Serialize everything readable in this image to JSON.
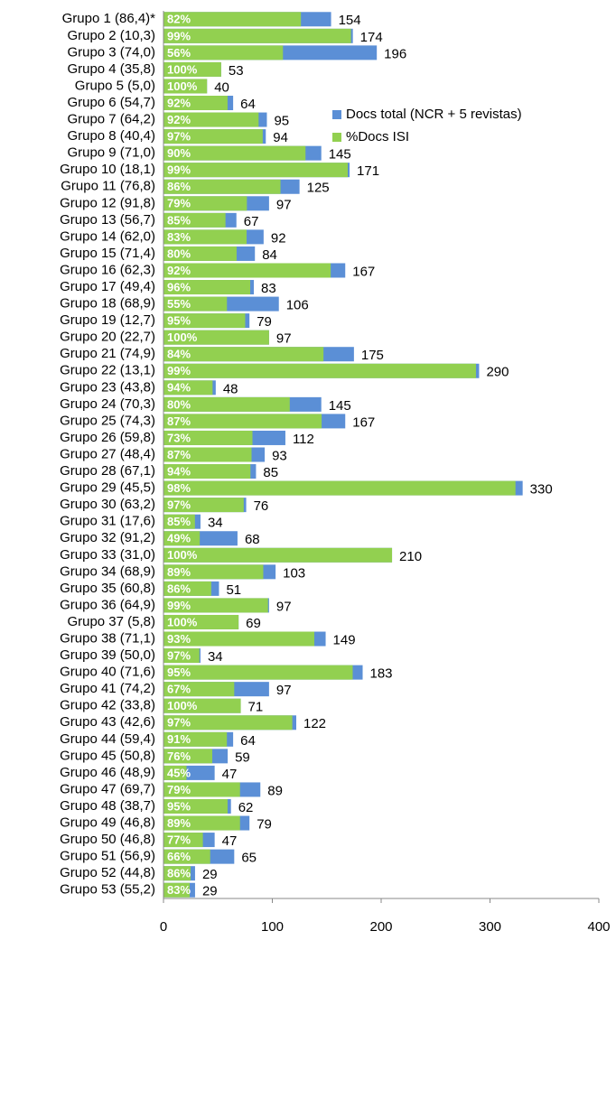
{
  "chart_data": {
    "type": "bar",
    "orientation": "horizontal",
    "categories": [
      "Grupo 1 (86,4)*",
      "Grupo 2 (10,3)",
      "Grupo 3 (74,0)",
      "Grupo 4 (35,8)",
      "Grupo 5 (5,0)",
      "Grupo 6 (54,7)",
      "Grupo 7 (64,2)",
      "Grupo 8 (40,4)",
      "Grupo 9 (71,0)",
      "Grupo 10 (18,1)",
      "Grupo 11 (76,8)",
      "Grupo 12 (91,8)",
      "Grupo 13 (56,7)",
      "Grupo 14 (62,0)",
      "Grupo 15 (71,4)",
      "Grupo 16 (62,3)",
      "Grupo 17 (49,4)",
      "Grupo 18 (68,9)",
      "Grupo 19 (12,7)",
      "Grupo 20 (22,7)",
      "Grupo 21 (74,9)",
      "Grupo 22 (13,1)",
      "Grupo 23 (43,8)",
      "Grupo 24 (70,3)",
      "Grupo 25 (74,3)",
      "Grupo 26 (59,8)",
      "Grupo 27 (48,4)",
      "Grupo 28 (67,1)",
      "Grupo 29 (45,5)",
      "Grupo 30 (63,2)",
      "Grupo 31 (17,6)",
      "Grupo 32 (91,2)",
      "Grupo 33 (31,0)",
      "Grupo 34 (68,9)",
      "Grupo 35 (60,8)",
      "Grupo 36 (64,9)",
      "Grupo 37 (5,8)",
      "Grupo 38 (71,1)",
      "Grupo 39 (50,0)",
      "Grupo 40 (71,6)",
      "Grupo 41 (74,2)",
      "Grupo 42 (33,8)",
      "Grupo 43 (42,6)",
      "Grupo 44 (59,4)",
      "Grupo 45 (50,8)",
      "Grupo 46 (48,9)",
      "Grupo 47 (69,7)",
      "Grupo 48 (38,7)",
      "Grupo 49 (46,8)",
      "Grupo 50 (46,8)",
      "Grupo 51 (56,9)",
      "Grupo 52 (44,8)",
      "Grupo 53 (55,2)"
    ],
    "series": [
      {
        "name": "Docs total (NCR + 5 revistas)",
        "color": "#5b8fd6",
        "values": [
          154,
          174,
          196,
          53,
          40,
          64,
          95,
          94,
          145,
          171,
          125,
          97,
          67,
          92,
          84,
          167,
          83,
          106,
          79,
          97,
          175,
          290,
          48,
          145,
          167,
          112,
          93,
          85,
          330,
          76,
          34,
          68,
          210,
          103,
          51,
          97,
          69,
          149,
          34,
          183,
          97,
          71,
          122,
          64,
          59,
          47,
          89,
          62,
          79,
          47,
          65,
          29,
          29
        ]
      },
      {
        "name": "%Docs ISI",
        "color": "#92d050",
        "values": [
          82,
          99,
          56,
          100,
          100,
          92,
          92,
          97,
          90,
          99,
          86,
          79,
          85,
          83,
          80,
          92,
          96,
          55,
          95,
          100,
          84,
          99,
          94,
          80,
          87,
          73,
          87,
          94,
          98,
          97,
          85,
          49,
          100,
          89,
          86,
          99,
          100,
          93,
          97,
          95,
          67,
          100,
          97,
          91,
          76,
          45,
          79,
          95,
          89,
          77,
          66,
          86,
          83
        ],
        "value_labels": [
          "82%",
          "99%",
          "56%",
          "100%",
          "100%",
          "92%",
          "92%",
          "97%",
          "90%",
          "99%",
          "86%",
          "79%",
          "85%",
          "83%",
          "80%",
          "92%",
          "96%",
          "55%",
          "95%",
          "100%",
          "84%",
          "99%",
          "94%",
          "80%",
          "87%",
          "73%",
          "87%",
          "94%",
          "98%",
          "97%",
          "85%",
          "49%",
          "100%",
          "89%",
          "86%",
          "99%",
          "100%",
          "93%",
          "97%",
          "95%",
          "67%",
          "100%",
          "97%",
          "91%",
          "76%",
          "45%",
          "79%",
          "95%",
          "89%",
          "77%",
          "66%",
          "86%",
          "83%"
        ]
      }
    ],
    "xlim": [
      0,
      400
    ],
    "xticks": [
      0,
      100,
      200,
      300,
      400
    ],
    "legend": "upper right"
  }
}
